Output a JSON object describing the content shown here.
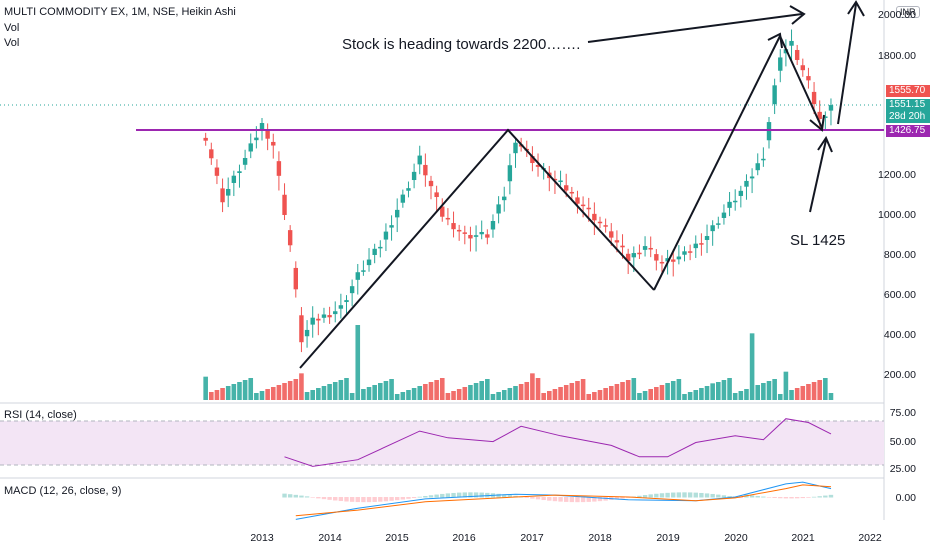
{
  "header": {
    "title": "MULTI COMMODITY EX, 1M, NSE, Heikin Ashi",
    "vol1": "Vol",
    "vol2": "Vol",
    "currency": "INR"
  },
  "annotations": {
    "target_text": "Stock is heading towards 2200…….",
    "stop_loss_text": "SL  1425"
  },
  "price_tags": {
    "last": "1555.70",
    "current": "1551.15",
    "countdown": "28d 20h",
    "level": "1426.75"
  },
  "colors": {
    "up": "#26a69a",
    "down": "#ef5350",
    "support_line": "#9c27b0",
    "rsi_line": "#9c27b0",
    "rsi_band": "#f3e5f5",
    "macd_line": "#2196f3",
    "signal_line": "#ff6d00"
  },
  "chart_data": [
    {
      "type": "candlestick",
      "title": "MULTI COMMODITY EX, 1M, NSE, Heikin Ashi",
      "x_ticks": [
        "2013",
        "2014",
        "2015",
        "2016",
        "2017",
        "2018",
        "2019",
        "2020",
        "2021",
        "2022"
      ],
      "y_ticks": [
        "200.00",
        "400.00",
        "600.00",
        "800.00",
        "1000.00",
        "1200.00",
        "1400.00",
        "1600.00",
        "1800.00",
        "2000.00"
      ],
      "ylim": [
        100,
        2100
      ],
      "support_level": 1426.75,
      "monthly_close_path": [
        {
          "date": "2012-03",
          "close": 1390
        },
        {
          "date": "2012-06",
          "close": 1080
        },
        {
          "date": "2012-10",
          "close": 1280
        },
        {
          "date": "2013-01",
          "close": 1450
        },
        {
          "date": "2013-03",
          "close": 1350
        },
        {
          "date": "2013-06",
          "close": 850
        },
        {
          "date": "2013-08",
          "close": 380
        },
        {
          "date": "2013-10",
          "close": 470
        },
        {
          "date": "2014-03",
          "close": 540
        },
        {
          "date": "2014-06",
          "close": 700
        },
        {
          "date": "2014-10",
          "close": 850
        },
        {
          "date": "2015-03",
          "close": 1150
        },
        {
          "date": "2015-05",
          "close": 1280
        },
        {
          "date": "2015-09",
          "close": 1000
        },
        {
          "date": "2016-01",
          "close": 900
        },
        {
          "date": "2016-05",
          "close": 900
        },
        {
          "date": "2016-08",
          "close": 1100
        },
        {
          "date": "2016-10",
          "close": 1380
        },
        {
          "date": "2017-02",
          "close": 1240
        },
        {
          "date": "2017-07",
          "close": 1130
        },
        {
          "date": "2017-10",
          "close": 1050
        },
        {
          "date": "2018-03",
          "close": 900
        },
        {
          "date": "2018-06",
          "close": 780
        },
        {
          "date": "2018-09",
          "close": 850
        },
        {
          "date": "2018-12",
          "close": 760
        },
        {
          "date": "2019-04",
          "close": 800
        },
        {
          "date": "2019-08",
          "close": 900
        },
        {
          "date": "2019-12",
          "close": 1050
        },
        {
          "date": "2020-03",
          "close": 1150
        },
        {
          "date": "2020-06",
          "close": 1300
        },
        {
          "date": "2020-09",
          "close": 1800
        },
        {
          "date": "2020-11",
          "close": 1850
        },
        {
          "date": "2021-02",
          "close": 1650
        },
        {
          "date": "2021-04",
          "close": 1470
        },
        {
          "date": "2021-06",
          "close": 1551.15
        }
      ],
      "volume_sample": [
        {
          "date": "2012-03",
          "value": 140,
          "dir": "down"
        },
        {
          "date": "2013-08",
          "value": 160,
          "dir": "down"
        },
        {
          "date": "2014-06",
          "value": 450,
          "dir": "up"
        },
        {
          "date": "2017-01",
          "value": 160,
          "dir": "up"
        },
        {
          "date": "2019-09",
          "value": 100,
          "dir": "down"
        },
        {
          "date": "2020-04",
          "value": 400,
          "dir": "up"
        },
        {
          "date": "2020-10",
          "value": 170,
          "dir": "up"
        }
      ]
    },
    {
      "type": "line",
      "title": "RSI (14, close)",
      "y_ticks": [
        "75.00",
        "50.00",
        "25.00"
      ],
      "ylim": [
        20,
        85
      ],
      "bands": [
        30,
        70
      ],
      "points": [
        {
          "date": "2013-05",
          "value": 38
        },
        {
          "date": "2013-10",
          "value": 28
        },
        {
          "date": "2014-06",
          "value": 35
        },
        {
          "date": "2015-05",
          "value": 65
        },
        {
          "date": "2015-10",
          "value": 58
        },
        {
          "date": "2016-06",
          "value": 54
        },
        {
          "date": "2016-11",
          "value": 70
        },
        {
          "date": "2017-06",
          "value": 60
        },
        {
          "date": "2018-03",
          "value": 50
        },
        {
          "date": "2018-08",
          "value": 38
        },
        {
          "date": "2019-01",
          "value": 38
        },
        {
          "date": "2019-06",
          "value": 53
        },
        {
          "date": "2020-01",
          "value": 60
        },
        {
          "date": "2020-06",
          "value": 56
        },
        {
          "date": "2020-10",
          "value": 78
        },
        {
          "date": "2021-02",
          "value": 74
        },
        {
          "date": "2021-06",
          "value": 62
        }
      ]
    },
    {
      "type": "line",
      "title": "MACD (12, 26, close, 9)",
      "y_ticks": [
        "0.00"
      ],
      "ylim": [
        -150,
        150
      ],
      "series": [
        {
          "name": "MACD",
          "points": [
            {
              "date": "2013-07",
              "value": -120
            },
            {
              "date": "2014-06",
              "value": -60
            },
            {
              "date": "2015-06",
              "value": -10
            },
            {
              "date": "2016-10",
              "value": 15
            },
            {
              "date": "2017-05",
              "value": 10
            },
            {
              "date": "2018-06",
              "value": -15
            },
            {
              "date": "2019-06",
              "value": -20
            },
            {
              "date": "2020-01",
              "value": 0
            },
            {
              "date": "2020-10",
              "value": 70
            },
            {
              "date": "2021-01",
              "value": 80
            },
            {
              "date": "2021-06",
              "value": 45
            }
          ]
        },
        {
          "name": "Signal",
          "points": [
            {
              "date": "2013-07",
              "value": -100
            },
            {
              "date": "2014-06",
              "value": -70
            },
            {
              "date": "2015-06",
              "value": -25
            },
            {
              "date": "2016-10",
              "value": 0
            },
            {
              "date": "2017-05",
              "value": 10
            },
            {
              "date": "2018-06",
              "value": 0
            },
            {
              "date": "2019-06",
              "value": -20
            },
            {
              "date": "2020-01",
              "value": -5
            },
            {
              "date": "2020-10",
              "value": 45
            },
            {
              "date": "2021-01",
              "value": 65
            },
            {
              "date": "2021-06",
              "value": 55
            }
          ]
        }
      ]
    }
  ]
}
